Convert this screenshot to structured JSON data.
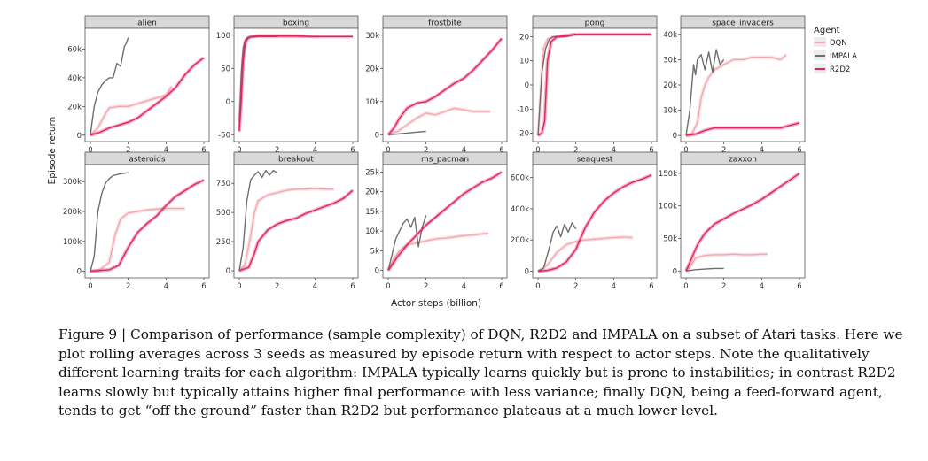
{
  "figure": {
    "ylabel": "Episode return",
    "xlabel": "Actor steps (billion)",
    "legend_title": "Agent",
    "caption_label": "Figure 9",
    "caption_text": "Comparison of performance (sample complexity) of DQN, R2D2 and IMPALA on a subset of Atari tasks. Here we plot rolling averages across 3 seeds as measured by episode return with respect to actor steps. Note the qualitatively different learning traits for each algorithm: IMPALA typically learns quickly but is prone to instabilities; in contrast R2D2 learns slowly but typically attains higher final performance with less variance; finally DQN, being a feed-forward agent, tends to get “off the ground” faster than R2D2 but performance plateaus at a much lower level."
  },
  "colors": {
    "DQN": "#f4a5ae",
    "IMPALA": "#6e6e6e",
    "R2D2": "#e0245e",
    "strip": "#d9d9d9",
    "panel_border": "#555555"
  },
  "chart_data": [
    {
      "type": "line",
      "title": "alien",
      "xlim": [
        0,
        6
      ],
      "ylim": [
        -2000,
        72000
      ],
      "xticks": [
        0,
        2,
        4,
        6
      ],
      "yticks": [
        0,
        20000,
        40000,
        60000
      ],
      "ytick_labels": [
        "0",
        "20k",
        "40k",
        "60k"
      ],
      "series": [
        {
          "name": "DQN",
          "x": [
            0,
            0.4,
            0.8,
            1.0,
            1.5,
            2,
            2.5,
            3,
            3.5,
            4,
            4.3
          ],
          "y": [
            0,
            5000,
            15000,
            19000,
            20000,
            20000,
            22000,
            24000,
            26000,
            28000,
            34000
          ]
        },
        {
          "name": "IMPALA",
          "x": [
            0,
            0.1,
            0.2,
            0.4,
            0.6,
            0.8,
            1.0,
            1.2,
            1.4,
            1.6,
            1.8,
            1.9,
            2.0
          ],
          "y": [
            0,
            10000,
            20000,
            30000,
            35000,
            38000,
            40000,
            40000,
            50000,
            48000,
            62000,
            64000,
            68000
          ]
        },
        {
          "name": "R2D2",
          "x": [
            0,
            0.5,
            1,
            1.5,
            2,
            2.5,
            3,
            3.5,
            4,
            4.5,
            5,
            5.5,
            6
          ],
          "y": [
            0,
            2000,
            5000,
            7000,
            9000,
            12000,
            17000,
            22000,
            27000,
            33000,
            42000,
            49000,
            54000
          ]
        }
      ]
    },
    {
      "type": "line",
      "title": "boxing",
      "xlim": [
        0,
        6
      ],
      "ylim": [
        -55,
        105
      ],
      "xticks": [
        0,
        2,
        4,
        6
      ],
      "yticks": [
        -50,
        0,
        50,
        100
      ],
      "ytick_labels": [
        "-50",
        "0",
        "50",
        "100"
      ],
      "series": [
        {
          "name": "DQN",
          "x": [
            0,
            0.1,
            0.2,
            0.3,
            0.4,
            0.6,
            1,
            2,
            3,
            4,
            4.2
          ],
          "y": [
            -30,
            20,
            70,
            90,
            96,
            98,
            98,
            98,
            98,
            98,
            98
          ]
        },
        {
          "name": "IMPALA",
          "x": [
            0,
            0.1,
            0.2,
            0.3,
            0.4,
            0.6,
            1,
            2
          ],
          "y": [
            -40,
            40,
            80,
            92,
            96,
            97,
            98,
            98
          ]
        },
        {
          "name": "R2D2",
          "x": [
            0,
            0.1,
            0.2,
            0.3,
            0.4,
            0.5,
            0.6,
            1,
            2,
            3,
            4,
            5,
            6
          ],
          "y": [
            -45,
            0,
            60,
            85,
            93,
            96,
            98,
            99,
            99,
            99,
            98,
            98,
            98
          ]
        }
      ]
    },
    {
      "type": "line",
      "title": "frostbite",
      "xlim": [
        0,
        6
      ],
      "ylim": [
        -1000,
        31000
      ],
      "xticks": [
        0,
        2,
        4,
        6
      ],
      "yticks": [
        0,
        10000,
        20000,
        30000
      ],
      "ytick_labels": [
        "0",
        "10k",
        "20k",
        "30k"
      ],
      "series": [
        {
          "name": "DQN",
          "x": [
            0,
            0.5,
            1,
            1.5,
            2,
            2.5,
            3,
            3.5,
            4,
            4.5,
            5,
            5.4
          ],
          "y": [
            0,
            1000,
            3000,
            5000,
            6500,
            6000,
            7000,
            8000,
            7500,
            7000,
            7000,
            7000
          ]
        },
        {
          "name": "IMPALA",
          "x": [
            0,
            0.5,
            1,
            1.5,
            2
          ],
          "y": [
            0,
            200,
            500,
            800,
            1000
          ]
        },
        {
          "name": "R2D2",
          "x": [
            0,
            0.3,
            0.6,
            1,
            1.5,
            2,
            2.5,
            3,
            3.5,
            4,
            4.5,
            5,
            5.5,
            6
          ],
          "y": [
            0,
            2000,
            5000,
            8000,
            9500,
            10000,
            11500,
            13500,
            15500,
            17000,
            19500,
            22500,
            25500,
            29000
          ]
        }
      ]
    },
    {
      "type": "line",
      "title": "pong",
      "xlim": [
        0,
        6
      ],
      "ylim": [
        -22,
        22
      ],
      "xticks": [
        0,
        2,
        4,
        6
      ],
      "yticks": [
        -20,
        -10,
        0,
        10,
        20
      ],
      "ytick_labels": [
        "-20",
        "-10",
        "0",
        "10",
        "20"
      ],
      "series": [
        {
          "name": "DQN",
          "x": [
            0,
            0.1,
            0.2,
            0.3,
            0.5,
            0.8,
            1,
            2
          ],
          "y": [
            -21,
            -10,
            5,
            15,
            19,
            20,
            20,
            21
          ]
        },
        {
          "name": "IMPALA",
          "x": [
            0,
            0.2,
            0.4,
            0.6,
            0.8,
            1,
            1.5,
            2
          ],
          "y": [
            -21,
            5,
            15,
            19,
            20,
            20,
            20,
            21
          ]
        },
        {
          "name": "R2D2",
          "x": [
            0,
            0.2,
            0.35,
            0.5,
            0.7,
            1,
            2,
            3,
            4,
            5,
            6
          ],
          "y": [
            -21,
            -20,
            -15,
            10,
            18,
            20,
            21,
            21,
            21,
            21,
            21
          ]
        }
      ]
    },
    {
      "type": "line",
      "title": "space_invaders",
      "xlim": [
        0,
        6
      ],
      "ylim": [
        -1000,
        41000
      ],
      "xticks": [
        0,
        2,
        4,
        6
      ],
      "yticks": [
        0,
        10000,
        20000,
        30000,
        40000
      ],
      "ytick_labels": [
        "0",
        "10k",
        "20k",
        "30k",
        "40k"
      ],
      "series": [
        {
          "name": "DQN",
          "x": [
            0,
            0.3,
            0.6,
            0.8,
            1,
            1.2,
            1.5,
            2,
            2.5,
            3,
            3.5,
            4,
            4.5,
            5,
            5.3
          ],
          "y": [
            0,
            500,
            5000,
            15000,
            20000,
            23000,
            26000,
            28000,
            30000,
            30000,
            31000,
            31000,
            31000,
            30000,
            32000
          ]
        },
        {
          "name": "IMPALA",
          "x": [
            0,
            0.2,
            0.4,
            0.5,
            0.6,
            0.8,
            1,
            1.2,
            1.4,
            1.6,
            1.8,
            2
          ],
          "y": [
            0,
            10000,
            28000,
            24000,
            30000,
            32000,
            26000,
            33000,
            25000,
            34000,
            28000,
            30000
          ]
        },
        {
          "name": "R2D2",
          "x": [
            0,
            0.5,
            1,
            1.5,
            2,
            3,
            4,
            5,
            5.5,
            6
          ],
          "y": [
            0,
            500,
            2000,
            3000,
            3000,
            3000,
            3000,
            3000,
            4000,
            5000
          ]
        }
      ]
    },
    {
      "type": "line",
      "title": "asteroids",
      "xlim": [
        0,
        6
      ],
      "ylim": [
        -10000,
        345000
      ],
      "xticks": [
        0,
        2,
        4,
        6
      ],
      "yticks": [
        0,
        100000,
        200000,
        300000
      ],
      "ytick_labels": [
        "0",
        "100k",
        "200k",
        "300k"
      ],
      "series": [
        {
          "name": "DQN",
          "x": [
            0,
            0.5,
            1,
            1.3,
            1.6,
            2,
            2.5,
            3,
            3.5,
            4,
            4.5,
            5
          ],
          "y": [
            0,
            5000,
            30000,
            120000,
            175000,
            195000,
            200000,
            205000,
            208000,
            210000,
            210000,
            210000
          ]
        },
        {
          "name": "IMPALA",
          "x": [
            0,
            0.2,
            0.4,
            0.6,
            0.8,
            1,
            1.2,
            1.5,
            2
          ],
          "y": [
            0,
            50000,
            200000,
            260000,
            295000,
            310000,
            320000,
            325000,
            330000
          ]
        },
        {
          "name": "R2D2",
          "x": [
            0,
            1,
            1.5,
            2,
            2.5,
            3,
            3.5,
            4,
            4.5,
            5,
            5.5,
            6
          ],
          "y": [
            0,
            5000,
            20000,
            80000,
            130000,
            160000,
            185000,
            220000,
            250000,
            270000,
            290000,
            305000
          ]
        }
      ]
    },
    {
      "type": "line",
      "title": "breakout",
      "xlim": [
        0,
        6
      ],
      "ylim": [
        -30,
        880
      ],
      "xticks": [
        0,
        2,
        4,
        6
      ],
      "yticks": [
        0,
        250,
        500,
        750
      ],
      "ytick_labels": [
        "0",
        "250",
        "500",
        "750"
      ],
      "series": [
        {
          "name": "DQN",
          "x": [
            0,
            0.3,
            0.6,
            0.8,
            1,
            1.5,
            2,
            2.5,
            3,
            3.5,
            4,
            4.5,
            5
          ],
          "y": [
            0,
            50,
            300,
            500,
            600,
            650,
            670,
            690,
            700,
            700,
            705,
            700,
            700
          ]
        },
        {
          "name": "IMPALA",
          "x": [
            0,
            0.2,
            0.4,
            0.6,
            0.8,
            1,
            1.2,
            1.4,
            1.6,
            1.8,
            2
          ],
          "y": [
            0,
            200,
            600,
            780,
            820,
            850,
            800,
            860,
            820,
            860,
            840
          ]
        },
        {
          "name": "R2D2",
          "x": [
            0,
            0.5,
            0.8,
            1,
            1.5,
            2,
            2.5,
            3,
            3.5,
            4,
            4.5,
            5,
            5.5,
            6
          ],
          "y": [
            0,
            30,
            150,
            250,
            350,
            400,
            430,
            450,
            490,
            520,
            550,
            580,
            620,
            690
          ]
        }
      ]
    },
    {
      "type": "line",
      "title": "ms_pacman",
      "xlim": [
        0,
        6
      ],
      "ylim": [
        -1000,
        26000
      ],
      "xticks": [
        0,
        2,
        4,
        6
      ],
      "yticks": [
        0,
        5000,
        10000,
        15000,
        20000,
        25000
      ],
      "ytick_labels": [
        "0",
        "5k",
        "10k",
        "15k",
        "20k",
        "25k"
      ],
      "series": [
        {
          "name": "DQN",
          "x": [
            0,
            0.3,
            0.6,
            1,
            1.5,
            2,
            2.5,
            3,
            3.5,
            4,
            4.5,
            5,
            5.3
          ],
          "y": [
            0,
            3000,
            5000,
            6500,
            7000,
            7500,
            8000,
            8200,
            8500,
            8800,
            9000,
            9300,
            9400
          ]
        },
        {
          "name": "IMPALA",
          "x": [
            0,
            0.2,
            0.4,
            0.6,
            0.8,
            1,
            1.2,
            1.4,
            1.6,
            1.8,
            2
          ],
          "y": [
            0,
            4000,
            8000,
            10000,
            12000,
            13000,
            11000,
            13500,
            6000,
            11000,
            14000
          ]
        },
        {
          "name": "R2D2",
          "x": [
            0,
            0.5,
            1,
            1.5,
            2,
            2.5,
            3,
            3.5,
            4,
            4.5,
            5,
            5.5,
            6
          ],
          "y": [
            0,
            3500,
            6500,
            9000,
            11500,
            13500,
            15500,
            17500,
            19500,
            21000,
            22500,
            23500,
            25000
          ]
        }
      ]
    },
    {
      "type": "line",
      "title": "seaquest",
      "xlim": [
        0,
        6
      ],
      "ylim": [
        -20000,
        660000
      ],
      "xticks": [
        0,
        2,
        4,
        6
      ],
      "yticks": [
        0,
        200000,
        400000,
        600000
      ],
      "ytick_labels": [
        "0",
        "200k",
        "400k",
        "600k"
      ],
      "series": [
        {
          "name": "DQN",
          "x": [
            0,
            0.5,
            1,
            1.5,
            2,
            2.5,
            3,
            3.5,
            4,
            4.5,
            5
          ],
          "y": [
            0,
            40000,
            120000,
            170000,
            190000,
            200000,
            205000,
            210000,
            215000,
            218000,
            215000
          ]
        },
        {
          "name": "IMPALA",
          "x": [
            0,
            0.3,
            0.6,
            0.8,
            1,
            1.2,
            1.4,
            1.6,
            1.8,
            2
          ],
          "y": [
            0,
            20000,
            150000,
            250000,
            290000,
            220000,
            300000,
            250000,
            310000,
            270000
          ]
        },
        {
          "name": "R2D2",
          "x": [
            0,
            0.5,
            1,
            1.5,
            2,
            2.5,
            3,
            3.5,
            4,
            4.5,
            5,
            5.5,
            6
          ],
          "y": [
            0,
            5000,
            20000,
            60000,
            140000,
            280000,
            380000,
            450000,
            500000,
            540000,
            570000,
            590000,
            615000
          ]
        }
      ]
    },
    {
      "type": "line",
      "title": "zaxxon",
      "xlim": [
        0,
        6
      ],
      "ylim": [
        -5000,
        158000
      ],
      "xticks": [
        0,
        2,
        4,
        6
      ],
      "yticks": [
        0,
        50000,
        100000,
        150000
      ],
      "ytick_labels": [
        "0",
        "50k",
        "100k",
        "150k"
      ],
      "series": [
        {
          "name": "DQN",
          "x": [
            0,
            0.3,
            0.5,
            1,
            1.5,
            2,
            2.5,
            3,
            3.5,
            4,
            4.3
          ],
          "y": [
            0,
            10000,
            20000,
            24000,
            25000,
            25000,
            26000,
            25000,
            25000,
            26000,
            26000
          ]
        },
        {
          "name": "IMPALA",
          "x": [
            0,
            0.5,
            1,
            1.5,
            2
          ],
          "y": [
            0,
            2000,
            3000,
            4000,
            4000
          ]
        },
        {
          "name": "R2D2",
          "x": [
            0,
            0.3,
            0.6,
            1,
            1.5,
            2,
            2.5,
            3,
            3.5,
            4,
            4.5,
            5,
            5.5,
            6
          ],
          "y": [
            0,
            20000,
            40000,
            58000,
            72000,
            80000,
            88000,
            95000,
            102000,
            110000,
            120000,
            130000,
            140000,
            150000
          ]
        }
      ]
    }
  ]
}
